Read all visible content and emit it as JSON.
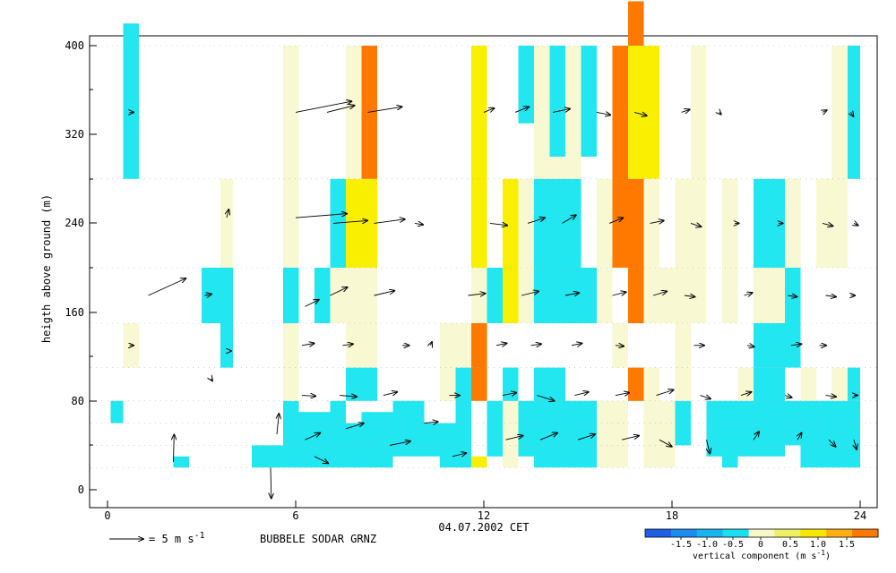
{
  "chart_data": {
    "type": "heatmap",
    "title": "BUBBELE SODAR GRNZ",
    "xlabel": "04.07.2002 CET",
    "ylabel": "heigth above ground (m)",
    "xlim": [
      0,
      24
    ],
    "ylim": [
      0,
      400
    ],
    "xticks": [
      "0",
      "6",
      "12",
      "18",
      "24"
    ],
    "yticks": [
      "0",
      "80",
      "160",
      "240",
      "320",
      "400"
    ],
    "legend_arrow_label": "= 5 m s",
    "legend_arrow_exp": "-1",
    "colorbar_title": "vertical component (m s",
    "colorbar_title_exp": "-1",
    "colorbar_title_end": ")",
    "colorbar_ticks": [
      "-1.5",
      "-1.0",
      "-0.5",
      "0",
      "0.5",
      "1.0",
      "1.5"
    ],
    "colorbar_colors": [
      "#1e5fe6",
      "#1a8ef0",
      "#18b4f0",
      "#18e0f0",
      "#f6f8c8",
      "#f0f066",
      "#f8e800",
      "#ffb010",
      "#ff7800"
    ],
    "cell_colors": {
      "C": "#22e6f0",
      "B": "#18ccf0",
      "P": "#f8f8d2",
      "Y": "#f8f000",
      "O": "#ff7800"
    },
    "cells": [
      [
        0.5,
        1.0,
        280,
        420,
        "C"
      ],
      [
        0.1,
        0.5,
        60,
        80,
        "C"
      ],
      [
        0.5,
        1.0,
        110,
        150,
        "P"
      ],
      [
        2.1,
        2.6,
        20,
        30,
        "C"
      ],
      [
        3.0,
        3.6,
        150,
        200,
        "C"
      ],
      [
        3.6,
        4.0,
        150,
        200,
        "C"
      ],
      [
        3.6,
        4.0,
        110,
        150,
        "C"
      ],
      [
        3.6,
        4.0,
        200,
        280,
        "P"
      ],
      [
        4.6,
        5.6,
        20,
        40,
        "C"
      ],
      [
        5.6,
        6.1,
        20,
        80,
        "C"
      ],
      [
        5.6,
        6.1,
        150,
        200,
        "C"
      ],
      [
        5.6,
        6.1,
        200,
        400,
        "P"
      ],
      [
        5.6,
        6.1,
        80,
        150,
        "P"
      ],
      [
        6.1,
        7.1,
        20,
        70,
        "C"
      ],
      [
        6.6,
        7.1,
        150,
        200,
        "C"
      ],
      [
        7.1,
        7.6,
        20,
        80,
        "C"
      ],
      [
        7.1,
        7.6,
        150,
        200,
        "P"
      ],
      [
        7.1,
        7.6,
        200,
        280,
        "C"
      ],
      [
        7.6,
        8.1,
        20,
        60,
        "C"
      ],
      [
        7.6,
        8.1,
        80,
        110,
        "C"
      ],
      [
        7.6,
        8.1,
        110,
        150,
        "P"
      ],
      [
        7.6,
        8.1,
        150,
        200,
        "P"
      ],
      [
        7.6,
        8.1,
        200,
        280,
        "Y"
      ],
      [
        7.6,
        8.1,
        280,
        400,
        "P"
      ],
      [
        8.1,
        8.6,
        80,
        110,
        "C"
      ],
      [
        8.1,
        8.6,
        110,
        150,
        "P"
      ],
      [
        8.1,
        8.6,
        150,
        200,
        "P"
      ],
      [
        8.1,
        8.6,
        200,
        280,
        "Y"
      ],
      [
        8.1,
        8.6,
        280,
        400,
        "O"
      ],
      [
        8.1,
        9.1,
        20,
        70,
        "C"
      ],
      [
        9.1,
        10.1,
        30,
        80,
        "C"
      ],
      [
        10.1,
        10.6,
        30,
        60,
        "C"
      ],
      [
        10.6,
        11.1,
        20,
        60,
        "C"
      ],
      [
        10.6,
        11.1,
        80,
        150,
        "P"
      ],
      [
        11.1,
        11.6,
        20,
        110,
        "C"
      ],
      [
        11.1,
        11.6,
        110,
        150,
        "P"
      ],
      [
        11.6,
        12.1,
        80,
        150,
        "O"
      ],
      [
        11.6,
        12.1,
        150,
        200,
        "P"
      ],
      [
        11.6,
        12.1,
        200,
        400,
        "Y"
      ],
      [
        11.6,
        12.1,
        20,
        30,
        "Y"
      ],
      [
        12.1,
        12.6,
        30,
        80,
        "C"
      ],
      [
        12.1,
        12.6,
        150,
        200,
        "C"
      ],
      [
        12.6,
        13.1,
        20,
        80,
        "P"
      ],
      [
        12.6,
        13.1,
        80,
        110,
        "C"
      ],
      [
        12.6,
        13.1,
        150,
        280,
        "Y"
      ],
      [
        13.1,
        13.6,
        30,
        80,
        "C"
      ],
      [
        13.1,
        13.6,
        150,
        200,
        "P"
      ],
      [
        13.1,
        13.6,
        200,
        280,
        "P"
      ],
      [
        13.1,
        13.6,
        330,
        400,
        "C"
      ],
      [
        13.6,
        14.6,
        20,
        110,
        "C"
      ],
      [
        13.6,
        14.6,
        150,
        200,
        "C"
      ],
      [
        13.6,
        14.6,
        200,
        280,
        "C"
      ],
      [
        13.6,
        14.6,
        280,
        400,
        "P"
      ],
      [
        14.1,
        14.6,
        300,
        400,
        "C"
      ],
      [
        14.6,
        15.1,
        20,
        80,
        "C"
      ],
      [
        14.6,
        15.1,
        150,
        280,
        "C"
      ],
      [
        14.6,
        15.1,
        280,
        400,
        "P"
      ],
      [
        15.1,
        15.6,
        20,
        80,
        "C"
      ],
      [
        15.1,
        15.6,
        300,
        400,
        "C"
      ],
      [
        15.1,
        15.6,
        150,
        200,
        "C"
      ],
      [
        15.6,
        16.1,
        20,
        80,
        "P"
      ],
      [
        15.6,
        16.1,
        150,
        280,
        "P"
      ],
      [
        16.1,
        16.6,
        20,
        80,
        "P"
      ],
      [
        16.1,
        16.6,
        200,
        400,
        "O"
      ],
      [
        16.1,
        16.6,
        110,
        150,
        "P"
      ],
      [
        16.6,
        17.1,
        80,
        110,
        "O"
      ],
      [
        16.6,
        17.1,
        150,
        280,
        "O"
      ],
      [
        16.6,
        17.1,
        280,
        400,
        "Y"
      ],
      [
        16.6,
        17.1,
        400,
        440,
        "O"
      ],
      [
        17.1,
        17.6,
        280,
        400,
        "Y"
      ],
      [
        17.1,
        17.6,
        150,
        280,
        "P"
      ],
      [
        17.1,
        17.6,
        20,
        110,
        "P"
      ],
      [
        17.6,
        18.1,
        20,
        80,
        "P"
      ],
      [
        17.6,
        18.1,
        150,
        200,
        "P"
      ],
      [
        18.1,
        18.6,
        40,
        80,
        "C"
      ],
      [
        18.1,
        18.6,
        80,
        150,
        "P"
      ],
      [
        18.1,
        19.1,
        150,
        280,
        "P"
      ],
      [
        18.6,
        19.1,
        280,
        400,
        "P"
      ],
      [
        19.1,
        19.6,
        30,
        80,
        "C"
      ],
      [
        19.6,
        20.1,
        20,
        80,
        "C"
      ],
      [
        19.6,
        20.1,
        150,
        280,
        "P"
      ],
      [
        20.1,
        20.6,
        30,
        80,
        "C"
      ],
      [
        20.1,
        20.6,
        80,
        110,
        "P"
      ],
      [
        20.6,
        21.6,
        30,
        110,
        "C"
      ],
      [
        20.6,
        21.6,
        110,
        150,
        "C"
      ],
      [
        20.6,
        21.6,
        200,
        280,
        "C"
      ],
      [
        20.6,
        21.6,
        150,
        200,
        "P"
      ],
      [
        21.6,
        22.1,
        40,
        80,
        "C"
      ],
      [
        21.6,
        22.1,
        110,
        200,
        "C"
      ],
      [
        21.6,
        22.1,
        200,
        280,
        "P"
      ],
      [
        22.1,
        22.6,
        20,
        80,
        "C"
      ],
      [
        22.1,
        22.6,
        80,
        110,
        "P"
      ],
      [
        22.6,
        23.1,
        20,
        80,
        "C"
      ],
      [
        22.6,
        23.6,
        200,
        280,
        "P"
      ],
      [
        23.1,
        23.6,
        20,
        80,
        "C"
      ],
      [
        23.1,
        23.6,
        80,
        110,
        "P"
      ],
      [
        23.1,
        23.6,
        280,
        400,
        "P"
      ],
      [
        23.6,
        24.0,
        20,
        80,
        "C"
      ],
      [
        23.6,
        24.0,
        80,
        110,
        "C"
      ],
      [
        23.6,
        24.0,
        280,
        400,
        "C"
      ]
    ],
    "arrows": [
      [
        0.7,
        340,
        0.6,
        0
      ],
      [
        0.7,
        130,
        0.6,
        0
      ],
      [
        2.1,
        25,
        0.1,
        4
      ],
      [
        3.3,
        100,
        0.2,
        -0.3
      ],
      [
        1.3,
        175,
        5.5,
        2.5
      ],
      [
        3.1,
        175,
        1.0,
        0.2
      ],
      [
        3.8,
        245,
        0.3,
        1.2
      ],
      [
        3.9,
        125,
        0.2,
        0
      ],
      [
        5.2,
        20,
        0.1,
        -4.5
      ],
      [
        5.4,
        50,
        0.3,
        3.0
      ],
      [
        6.0,
        340,
        8.2,
        1.6
      ],
      [
        6.0,
        245,
        7.5,
        0.6
      ],
      [
        6.2,
        130,
        1.8,
        0.3
      ],
      [
        6.3,
        165,
        2.0,
        1.0
      ],
      [
        6.2,
        85,
        2.0,
        -0.1
      ],
      [
        6.3,
        45,
        2.2,
        1.0
      ],
      [
        6.6,
        30,
        2.0,
        -1.0
      ],
      [
        7.0,
        340,
        4.0,
        1.0
      ],
      [
        7.2,
        240,
        5.0,
        0.4
      ],
      [
        7.1,
        175,
        2.5,
        1.2
      ],
      [
        7.5,
        130,
        1.5,
        0.2
      ],
      [
        7.4,
        85,
        2.5,
        -0.2
      ],
      [
        7.6,
        55,
        2.6,
        0.8
      ],
      [
        8.3,
        340,
        5.0,
        0.8
      ],
      [
        8.5,
        240,
        4.5,
        0.6
      ],
      [
        8.5,
        175,
        3.0,
        0.7
      ],
      [
        8.8,
        85,
        2.0,
        0.5
      ],
      [
        9.0,
        40,
        3.0,
        0.6
      ],
      [
        9.4,
        130,
        1.0,
        0
      ],
      [
        9.8,
        240,
        1.2,
        -0.2
      ],
      [
        10.1,
        60,
        2.0,
        0.2
      ],
      [
        10.3,
        130,
        0.2,
        0.5
      ],
      [
        10.9,
        85,
        1.5,
        0
      ],
      [
        11.0,
        30,
        2.0,
        0.5
      ],
      [
        11.5,
        175,
        2.5,
        0.3
      ],
      [
        12.0,
        340,
        1.5,
        0.6
      ],
      [
        12.2,
        240,
        2.5,
        -0.3
      ],
      [
        12.4,
        130,
        1.5,
        0.3
      ],
      [
        12.6,
        85,
        2.0,
        0.4
      ],
      [
        12.7,
        45,
        2.5,
        0.6
      ],
      [
        13.0,
        340,
        2.0,
        0.8
      ],
      [
        13.4,
        240,
        2.5,
        0.8
      ],
      [
        13.2,
        175,
        2.5,
        0.6
      ],
      [
        13.5,
        130,
        1.5,
        0.2
      ],
      [
        13.7,
        85,
        2.5,
        -0.8
      ],
      [
        13.8,
        45,
        2.5,
        1.0
      ],
      [
        14.2,
        340,
        2.5,
        0.5
      ],
      [
        14.5,
        240,
        2.0,
        1.2
      ],
      [
        14.6,
        175,
        2.0,
        0.4
      ],
      [
        14.8,
        130,
        1.5,
        0.3
      ],
      [
        14.9,
        85,
        2.0,
        0.5
      ],
      [
        15.0,
        45,
        2.5,
        0.8
      ],
      [
        15.6,
        340,
        2.0,
        -0.4
      ],
      [
        16.0,
        240,
        2.0,
        0.8
      ],
      [
        16.1,
        175,
        2.0,
        0.5
      ],
      [
        16.2,
        130,
        1.2,
        -0.1
      ],
      [
        16.2,
        85,
        2.0,
        0.4
      ],
      [
        16.4,
        45,
        2.5,
        0.6
      ],
      [
        16.8,
        340,
        1.8,
        -0.5
      ],
      [
        17.3,
        240,
        2.0,
        0.4
      ],
      [
        17.4,
        175,
        2.0,
        0.6
      ],
      [
        17.5,
        85,
        2.5,
        0.8
      ],
      [
        17.6,
        45,
        1.8,
        -1.0
      ],
      [
        18.3,
        340,
        1.2,
        0.4
      ],
      [
        18.6,
        240,
        1.5,
        -0.5
      ],
      [
        18.4,
        175,
        1.5,
        -0.2
      ],
      [
        18.7,
        130,
        1.5,
        0
      ],
      [
        18.9,
        85,
        1.5,
        -0.5
      ],
      [
        19.1,
        45,
        0.5,
        -2.0
      ],
      [
        19.5,
        340,
        0.3,
        -0.3
      ],
      [
        20.0,
        240,
        0.6,
        0
      ],
      [
        20.3,
        175,
        1.2,
        0.4
      ],
      [
        20.4,
        130,
        1.0,
        -0.2
      ],
      [
        20.2,
        85,
        1.5,
        0.5
      ],
      [
        20.6,
        45,
        0.8,
        1.2
      ],
      [
        21.4,
        240,
        0.6,
        0
      ],
      [
        21.7,
        175,
        1.3,
        -0.2
      ],
      [
        21.8,
        130,
        1.5,
        0.2
      ],
      [
        21.6,
        85,
        1.0,
        -0.3
      ],
      [
        22.0,
        45,
        0.6,
        1.0
      ],
      [
        22.8,
        340,
        0.6,
        0.3
      ],
      [
        22.8,
        240,
        1.5,
        -0.4
      ],
      [
        22.9,
        175,
        1.5,
        -0.2
      ],
      [
        22.7,
        130,
        1.0,
        0
      ],
      [
        22.9,
        85,
        1.5,
        -0.2
      ],
      [
        23.0,
        45,
        1.0,
        -1.0
      ],
      [
        23.7,
        340,
        0.4,
        -0.6
      ],
      [
        23.8,
        240,
        0.6,
        -0.3
      ],
      [
        23.7,
        175,
        0.6,
        0
      ],
      [
        23.8,
        85,
        0.5,
        0
      ],
      [
        23.8,
        45,
        0.4,
        -1.4
      ]
    ]
  }
}
